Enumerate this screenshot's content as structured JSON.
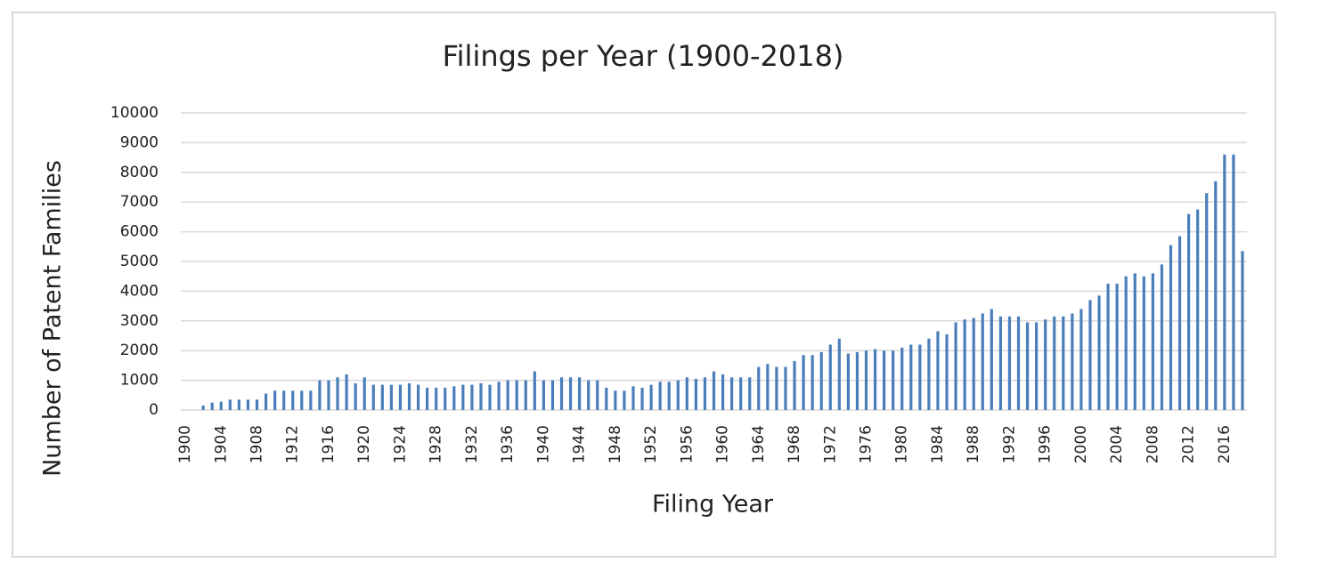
{
  "chart_data": {
    "type": "bar",
    "title": "Filings per Year (1900-2018)",
    "x_label": "Filing Year",
    "y_label": "Number of Patent Families",
    "categories": [
      "1900",
      null,
      null,
      null,
      "1904",
      null,
      null,
      null,
      "1908",
      null,
      null,
      null,
      "1912",
      null,
      null,
      null,
      "1916",
      null,
      null,
      null,
      "1920",
      null,
      null,
      null,
      "1924",
      null,
      null,
      null,
      "1928",
      null,
      null,
      null,
      "1932",
      null,
      null,
      null,
      "1936",
      null,
      null,
      null,
      "1940",
      null,
      null,
      null,
      "1944",
      null,
      null,
      null,
      "1948",
      null,
      null,
      null,
      "1952",
      null,
      null,
      null,
      "1956",
      null,
      null,
      null,
      "1960",
      null,
      null,
      null,
      "1964",
      null,
      null,
      null,
      "1968",
      null,
      null,
      null,
      "1972",
      null,
      null,
      null,
      "1976",
      null,
      null,
      null,
      "1980",
      null,
      null,
      null,
      "1984",
      null,
      null,
      null,
      "1988",
      null,
      null,
      null,
      "1992",
      null,
      null,
      null,
      "1996",
      null,
      null,
      null,
      "2000",
      null,
      null,
      null,
      "2004",
      null,
      null,
      null,
      "2008",
      null,
      null,
      null,
      "2012",
      null,
      null,
      null,
      "2016",
      null,
      null
    ],
    "values": [
      0,
      0,
      150,
      250,
      280,
      350,
      350,
      350,
      350,
      550,
      650,
      650,
      650,
      650,
      650,
      1000,
      1000,
      1100,
      1200,
      900,
      1100,
      850,
      850,
      850,
      850,
      900,
      850,
      750,
      750,
      750,
      800,
      850,
      850,
      900,
      850,
      950,
      1000,
      1000,
      1000,
      1300,
      1000,
      1000,
      1100,
      1100,
      1100,
      1000,
      1000,
      750,
      650,
      650,
      800,
      750,
      850,
      950,
      950,
      1000,
      1100,
      1050,
      1100,
      1300,
      1200,
      1100,
      1100,
      1100,
      1450,
      1550,
      1450,
      1450,
      1650,
      1850,
      1850,
      1950,
      2200,
      2400,
      1900,
      1950,
      2000,
      2050,
      2000,
      2000,
      2100,
      2200,
      2200,
      2400,
      2650,
      2550,
      2950,
      3050,
      3100,
      3250,
      3400,
      3150,
      3150,
      3150,
      2950,
      2950,
      3050,
      3150,
      3150,
      3250,
      3400,
      3700,
      3850,
      4250,
      4250,
      4500,
      4600,
      4500,
      4600,
      4900,
      5550,
      5850,
      6600,
      6750,
      7300,
      7700,
      8600,
      8600,
      5350
    ],
    "color": "#4a7ebb",
    "ylim": [
      0,
      10000
    ],
    "yticks": [
      0,
      1000,
      2000,
      3000,
      4000,
      5000,
      6000,
      7000,
      8000,
      9000,
      10000
    ],
    "grid": true
  }
}
